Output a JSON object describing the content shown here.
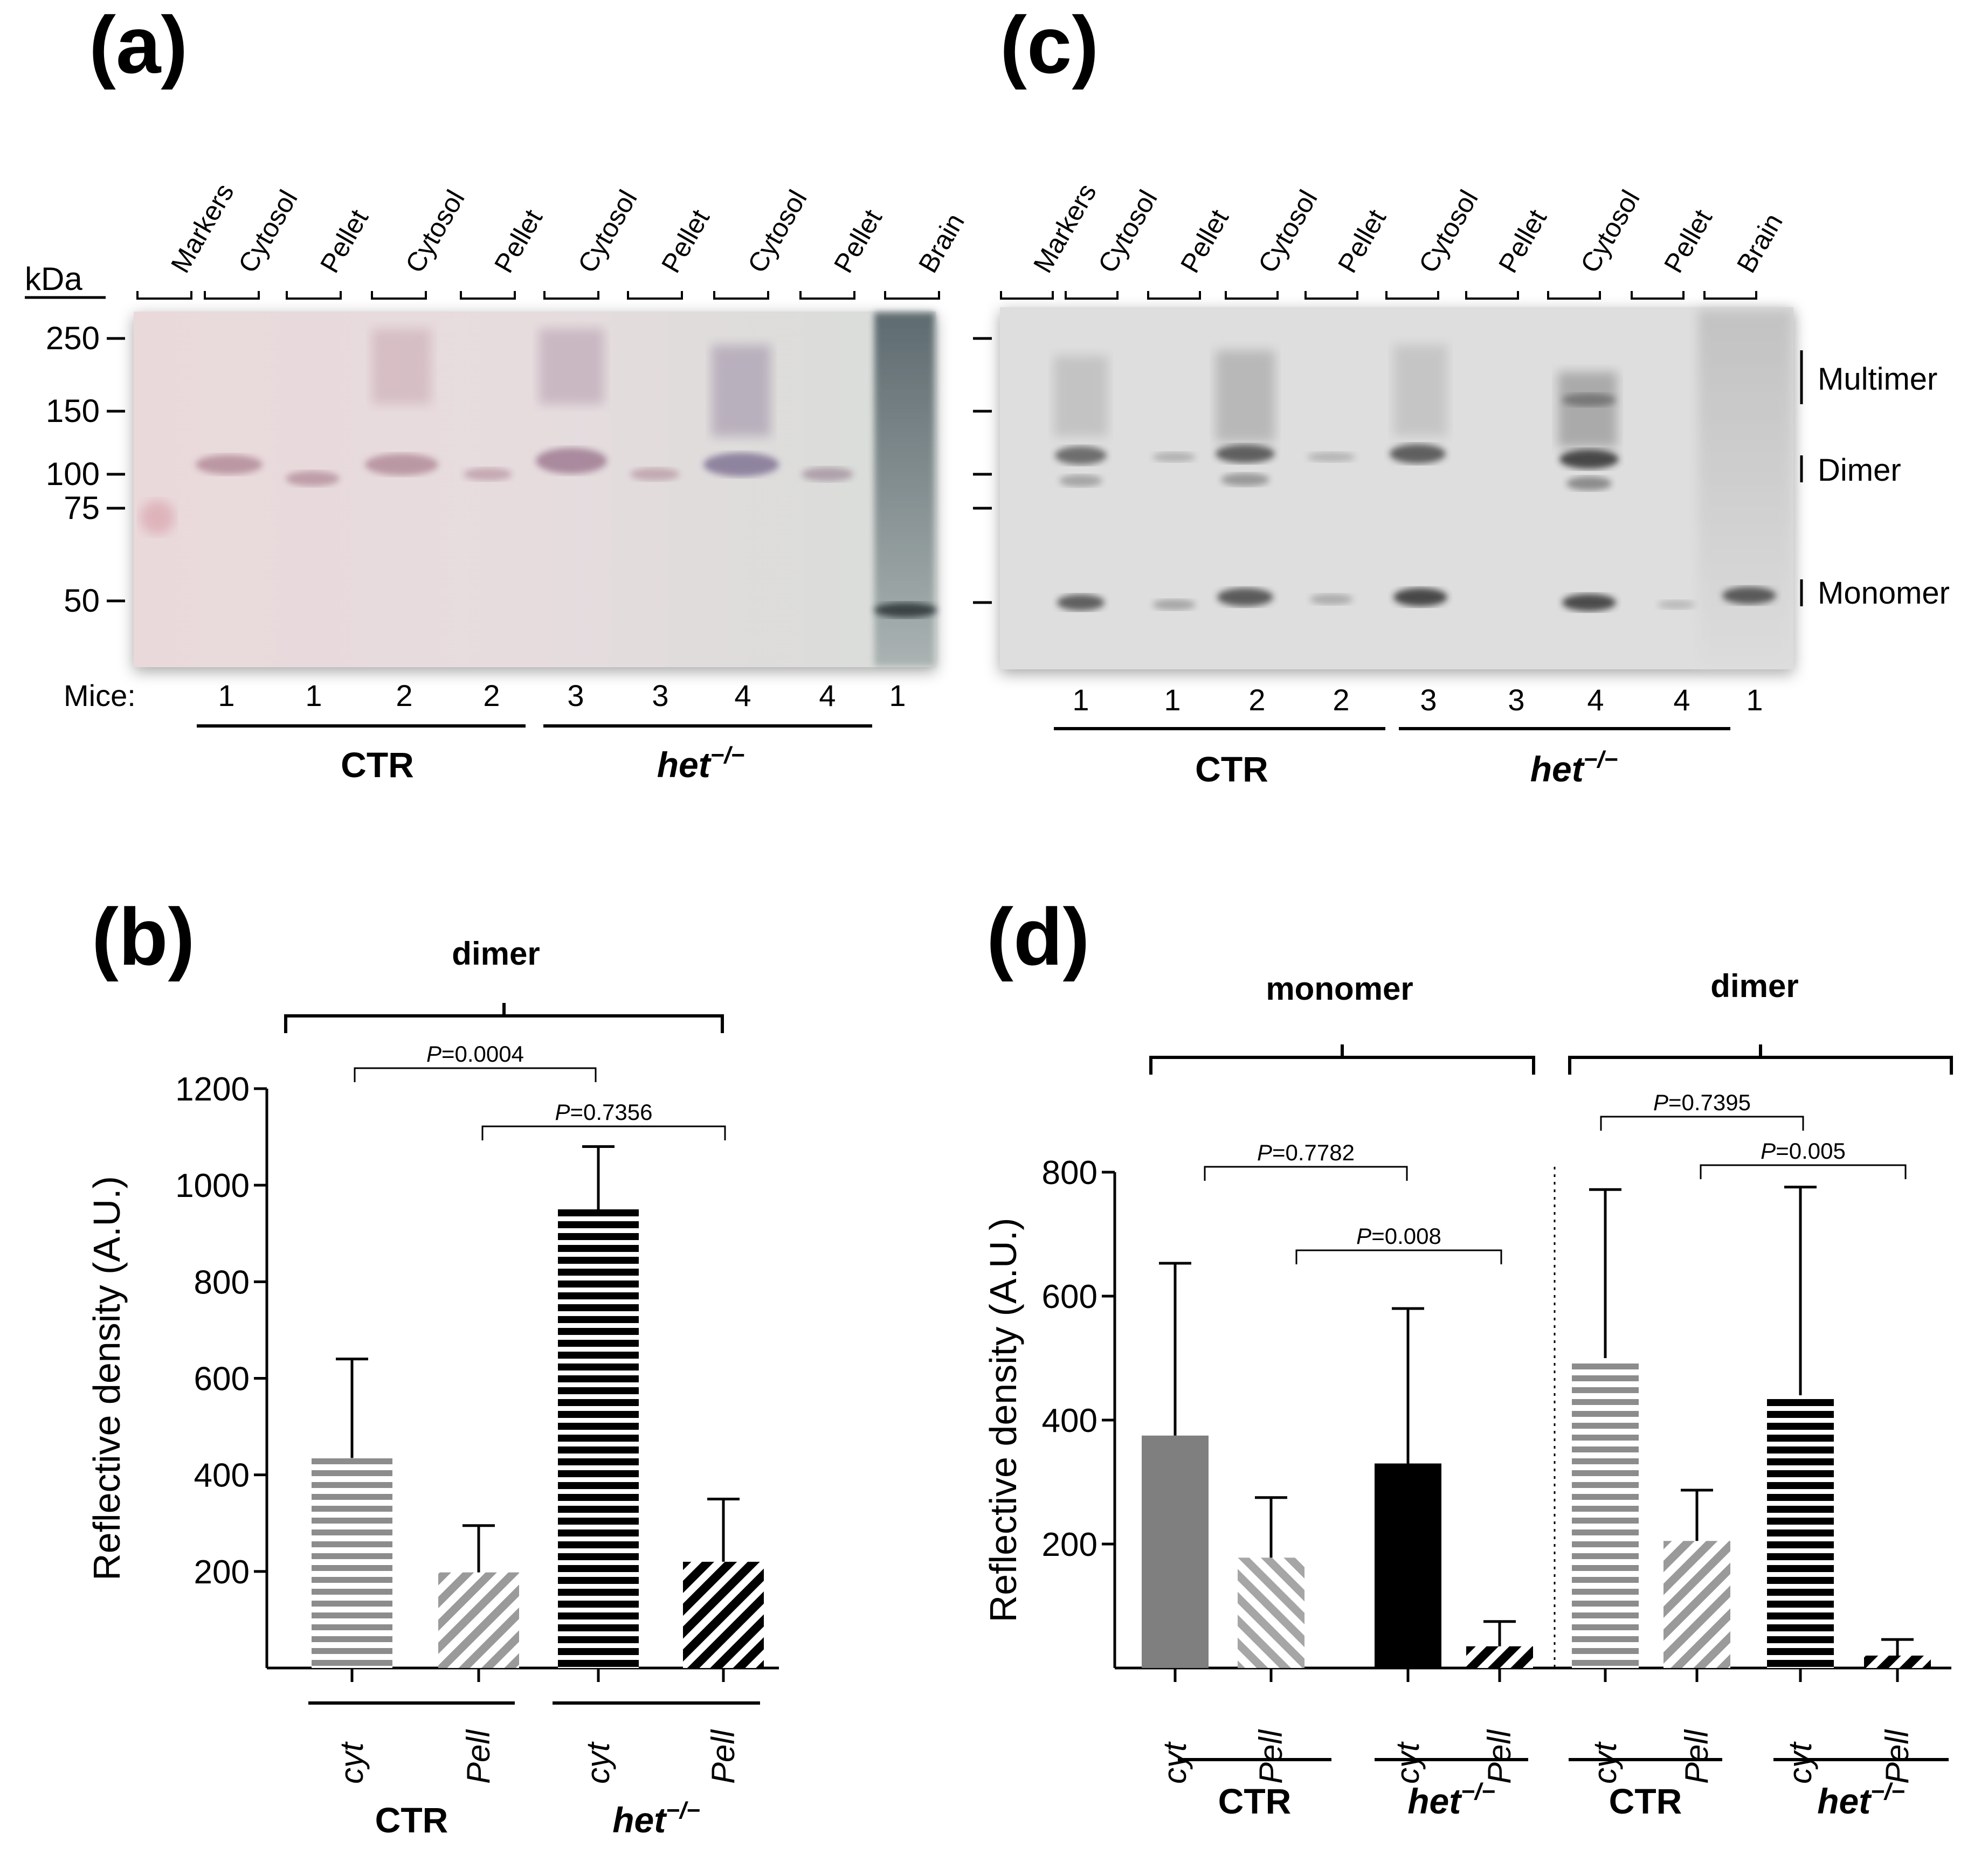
{
  "figure": {
    "labels": [
      "(a)",
      "(c)",
      "(b)",
      "(d)"
    ]
  },
  "blot_a": {
    "kda_label": "kDa",
    "markers": [
      "250",
      "150",
      "100",
      "75",
      "50"
    ],
    "lanes": [
      "Markers",
      "Cytosol",
      "Pellet",
      "Cytosol",
      "Pellet",
      "Cytosol",
      "Pellet",
      "Cytosol",
      "Pellet",
      "Brain"
    ],
    "mice_label": "Mice:",
    "mice": [
      "1",
      "1",
      "2",
      "2",
      "3",
      "3",
      "4",
      "4",
      "1"
    ],
    "groups": [
      "CTR",
      "het"
    ],
    "het_sup": "−/−"
  },
  "blot_c": {
    "lanes": [
      "Markers",
      "Cytosol",
      "Pellet",
      "Cytosol",
      "Pellet",
      "Cytosol",
      "Pellet",
      "Cytosol",
      "Pellet",
      "Brain"
    ],
    "band_labels": [
      "Multimer",
      "Dimer",
      "Monomer"
    ],
    "mice": [
      "1",
      "1",
      "2",
      "2",
      "3",
      "3",
      "4",
      "4",
      "1"
    ],
    "groups": [
      "CTR",
      "het"
    ],
    "het_sup": "−/−"
  },
  "chart_data": [
    {
      "panel": "(b)",
      "type": "bar",
      "title": "dimer",
      "ylabel": "Reflective density (A.U.)",
      "ylim": [
        0,
        1200
      ],
      "yticks": [
        "200",
        "400",
        "600",
        "800",
        "1000",
        "1200"
      ],
      "categories": [
        "cyt",
        "Pell",
        "cyt",
        "Pell"
      ],
      "values": [
        435,
        198,
        950,
        220
      ],
      "errors": [
        205,
        97,
        130,
        130
      ],
      "groups": [
        "CTR",
        "het"
      ],
      "het_sup": "−/−",
      "comparisons": [
        {
          "label_prefix": "P",
          "label": "=0.0004"
        },
        {
          "label_prefix": "P",
          "label": "=0.7356"
        }
      ]
    },
    {
      "panel": "(d)",
      "type": "bar",
      "ylabel": "Reflective density (A.U.)",
      "ylim": [
        0,
        800
      ],
      "yticks": [
        "200",
        "400",
        "600",
        "800"
      ],
      "titles": [
        "monomer",
        "dimer"
      ],
      "categories": [
        "cyt",
        "Pell",
        "cyt",
        "Pell",
        "cyt",
        "Pell",
        "cyt",
        "Pell"
      ],
      "values": [
        375,
        178,
        330,
        35,
        500,
        205,
        440,
        20
      ],
      "errors": [
        278,
        97,
        250,
        40,
        272,
        82,
        336,
        26
      ],
      "groups": [
        "CTR",
        "het",
        "CTR",
        "het"
      ],
      "het_sup": "−/−",
      "comparisons": [
        {
          "label_prefix": "P",
          "label": "=0.7782"
        },
        {
          "label_prefix": "P",
          "label": "=0.008"
        },
        {
          "label_prefix": "P",
          "label": "=0.7395"
        },
        {
          "label_prefix": "P",
          "label": "=0.005"
        }
      ]
    }
  ]
}
